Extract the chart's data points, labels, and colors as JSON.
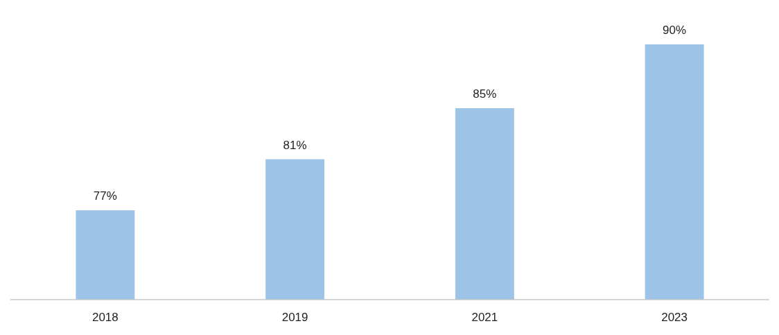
{
  "chart_data": {
    "type": "bar",
    "categories": [
      "2018",
      "2019",
      "2021",
      "2023"
    ],
    "values": [
      77,
      81,
      85,
      90
    ],
    "color": "#9dc3e6",
    "value_labels": [
      "77%",
      "81%",
      "85%",
      "90%"
    ],
    "ylim": [
      70,
      90
    ],
    "tick_labels": "x"
  }
}
